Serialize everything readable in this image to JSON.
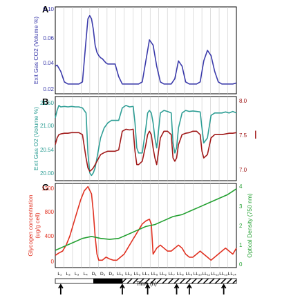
{
  "chart_data": [
    {
      "type": "line",
      "panel_label": "A",
      "ylabel": "Exit Gas CO2 (Volume %)",
      "y_ticks": [
        "0.02",
        "0.04",
        "0.06",
        "0.10"
      ],
      "series": [
        {
          "color": "#3a3aaa",
          "x": [
            0,
            1,
            3,
            5,
            7,
            9,
            11,
            13,
            15,
            17,
            18,
            19,
            20,
            21,
            22,
            23,
            24,
            25,
            26,
            27,
            28,
            29,
            31,
            33,
            35,
            37,
            40,
            42,
            44,
            46,
            48,
            50,
            52,
            54,
            56,
            58,
            60,
            62,
            64,
            66,
            68,
            70,
            72,
            74,
            76,
            78,
            80,
            82,
            84,
            86,
            88,
            90,
            92,
            94,
            96,
            98,
            100
          ],
          "y": [
            0.045,
            0.046,
            0.04,
            0.03,
            0.028,
            0.028,
            0.028,
            0.028,
            0.03,
            0.07,
            0.09,
            0.093,
            0.09,
            0.08,
            0.065,
            0.058,
            0.055,
            0.053,
            0.052,
            0.05,
            0.048,
            0.047,
            0.047,
            0.047,
            0.035,
            0.028,
            0.028,
            0.028,
            0.028,
            0.028,
            0.03,
            0.05,
            0.07,
            0.065,
            0.045,
            0.03,
            0.028,
            0.028,
            0.028,
            0.033,
            0.05,
            0.045,
            0.03,
            0.028,
            0.028,
            0.028,
            0.03,
            0.05,
            0.06,
            0.055,
            0.04,
            0.03,
            0.028,
            0.028,
            0.028,
            0.028,
            0.029
          ]
        }
      ]
    },
    {
      "type": "line",
      "panel_label": "B",
      "ylabel": "Exit Gas O2 (Volume %)",
      "y2label": "",
      "y_ticks": [
        "20.00",
        "20.54",
        "21.00",
        "21.50"
      ],
      "y2_ticks": [
        "7.0",
        "7.5",
        "8.0"
      ],
      "side_mark": "l",
      "series": [
        {
          "axis": "left",
          "color": "#2e9e95",
          "x": [
            0,
            1,
            2,
            3,
            5,
            7,
            9,
            11,
            13,
            15,
            17,
            18,
            19,
            20,
            21,
            22,
            23,
            24,
            25,
            27,
            29,
            31,
            33,
            35,
            37,
            39,
            41,
            43,
            44,
            45,
            46,
            48,
            50,
            51,
            52,
            53,
            54,
            55,
            56,
            58,
            60,
            62,
            64,
            65,
            66,
            67,
            68,
            70,
            72,
            74,
            76,
            78,
            80,
            81,
            82,
            84,
            86,
            88,
            90,
            92,
            94,
            96,
            98,
            100
          ],
          "y": [
            21.2,
            21.35,
            21.45,
            21.42,
            21.43,
            21.42,
            21.43,
            21.42,
            21.42,
            21.4,
            21.3,
            20.5,
            20.1,
            20.05,
            20.1,
            20.2,
            20.4,
            20.6,
            20.8,
            21.0,
            21.1,
            21.15,
            21.15,
            21.15,
            21.4,
            21.45,
            21.42,
            21.43,
            21.1,
            20.6,
            20.5,
            20.5,
            21.0,
            21.3,
            21.35,
            21.3,
            21.1,
            20.8,
            20.6,
            21.3,
            21.35,
            21.33,
            21.3,
            20.7,
            20.5,
            20.6,
            21.0,
            21.3,
            21.35,
            21.33,
            21.34,
            21.33,
            21.32,
            21.0,
            20.7,
            20.8,
            21.25,
            21.3,
            21.3,
            21.3,
            21.32,
            21.3,
            21.33,
            21.3
          ]
        },
        {
          "axis": "right",
          "color": "#a01818",
          "x": [
            0,
            1,
            2,
            3,
            5,
            7,
            9,
            11,
            13,
            15,
            17,
            18,
            19,
            20,
            21,
            22,
            23,
            24,
            25,
            27,
            29,
            31,
            33,
            35,
            37,
            39,
            41,
            43,
            44,
            45,
            46,
            48,
            50,
            51,
            52,
            53,
            54,
            55,
            56,
            58,
            60,
            62,
            64,
            65,
            66,
            67,
            68,
            70,
            72,
            74,
            76,
            78,
            80,
            81,
            82,
            84,
            86,
            88,
            90,
            92,
            94,
            96,
            98,
            100
          ],
          "y": [
            7.3,
            7.4,
            7.45,
            7.46,
            7.47,
            7.47,
            7.48,
            7.48,
            7.48,
            7.45,
            7.1,
            6.95,
            6.9,
            6.92,
            6.95,
            7.0,
            7.05,
            7.1,
            7.15,
            7.18,
            7.2,
            7.2,
            7.2,
            7.22,
            7.5,
            7.53,
            7.52,
            7.53,
            7.2,
            7.0,
            7.0,
            7.05,
            7.3,
            7.45,
            7.5,
            7.45,
            7.25,
            7.1,
            7.0,
            7.4,
            7.5,
            7.5,
            7.45,
            7.1,
            7.05,
            7.1,
            7.3,
            7.45,
            7.47,
            7.48,
            7.5,
            7.5,
            7.45,
            7.2,
            7.1,
            7.15,
            7.4,
            7.45,
            7.45,
            7.45,
            7.46,
            7.47,
            7.47,
            7.48
          ]
        }
      ]
    },
    {
      "type": "line",
      "panel_label": "C",
      "ylabel": "Glycogen concentration (ug/g cell)",
      "y2label": "Optical Density (750 nm)",
      "y_ticks": [
        "0",
        "400",
        "800",
        "1200"
      ],
      "y2_ticks": [
        "0",
        "1",
        "2",
        "3",
        "4"
      ],
      "xlabel": "Time (h)",
      "x_ticks": [
        "L₁",
        "L₂",
        "L₃",
        "L₄",
        "D₁",
        "D₂",
        "D₃",
        "LL₁",
        "LL₂",
        "LL₃",
        "LL₄",
        "LL₅",
        "LL₆",
        "LL₇",
        "LL₈",
        "LL₉",
        "LL₁₀",
        "LL₁₁",
        "LL₁₂",
        "LL₁₃",
        "LL₁₄"
      ],
      "series": [
        {
          "axis": "left",
          "color": "#e03020",
          "x": [
            0,
            2,
            4,
            6,
            8,
            10,
            12,
            14,
            16,
            18,
            20,
            21,
            22,
            23,
            24,
            26,
            28,
            30,
            32,
            34,
            36,
            38,
            40,
            42,
            44,
            46,
            48,
            50,
            52,
            53,
            54,
            56,
            58,
            60,
            62,
            64,
            66,
            68,
            70,
            72,
            74,
            76,
            78,
            80,
            82,
            84,
            86,
            88,
            90,
            92,
            94,
            96,
            98,
            100
          ],
          "y": [
            80,
            120,
            150,
            250,
            400,
            600,
            800,
            1000,
            1150,
            1220,
            1100,
            800,
            400,
            100,
            0,
            0,
            50,
            20,
            0,
            0,
            50,
            100,
            200,
            300,
            400,
            500,
            600,
            650,
            680,
            600,
            100,
            200,
            250,
            200,
            150,
            150,
            200,
            250,
            200,
            100,
            50,
            50,
            100,
            150,
            100,
            50,
            0,
            50,
            100,
            150,
            200,
            150,
            100,
            200
          ]
        },
        {
          "axis": "right",
          "color": "#22a030",
          "x": [
            0,
            5,
            10,
            15,
            20,
            25,
            30,
            35,
            40,
            45,
            50,
            55,
            60,
            65,
            70,
            75,
            80,
            85,
            90,
            95,
            100
          ],
          "y": [
            0.8,
            1.0,
            1.2,
            1.4,
            1.5,
            1.4,
            1.35,
            1.4,
            1.6,
            1.8,
            2.0,
            2.1,
            2.3,
            2.5,
            2.6,
            2.8,
            3.0,
            3.2,
            3.4,
            3.6,
            3.9
          ]
        }
      ]
    }
  ]
}
